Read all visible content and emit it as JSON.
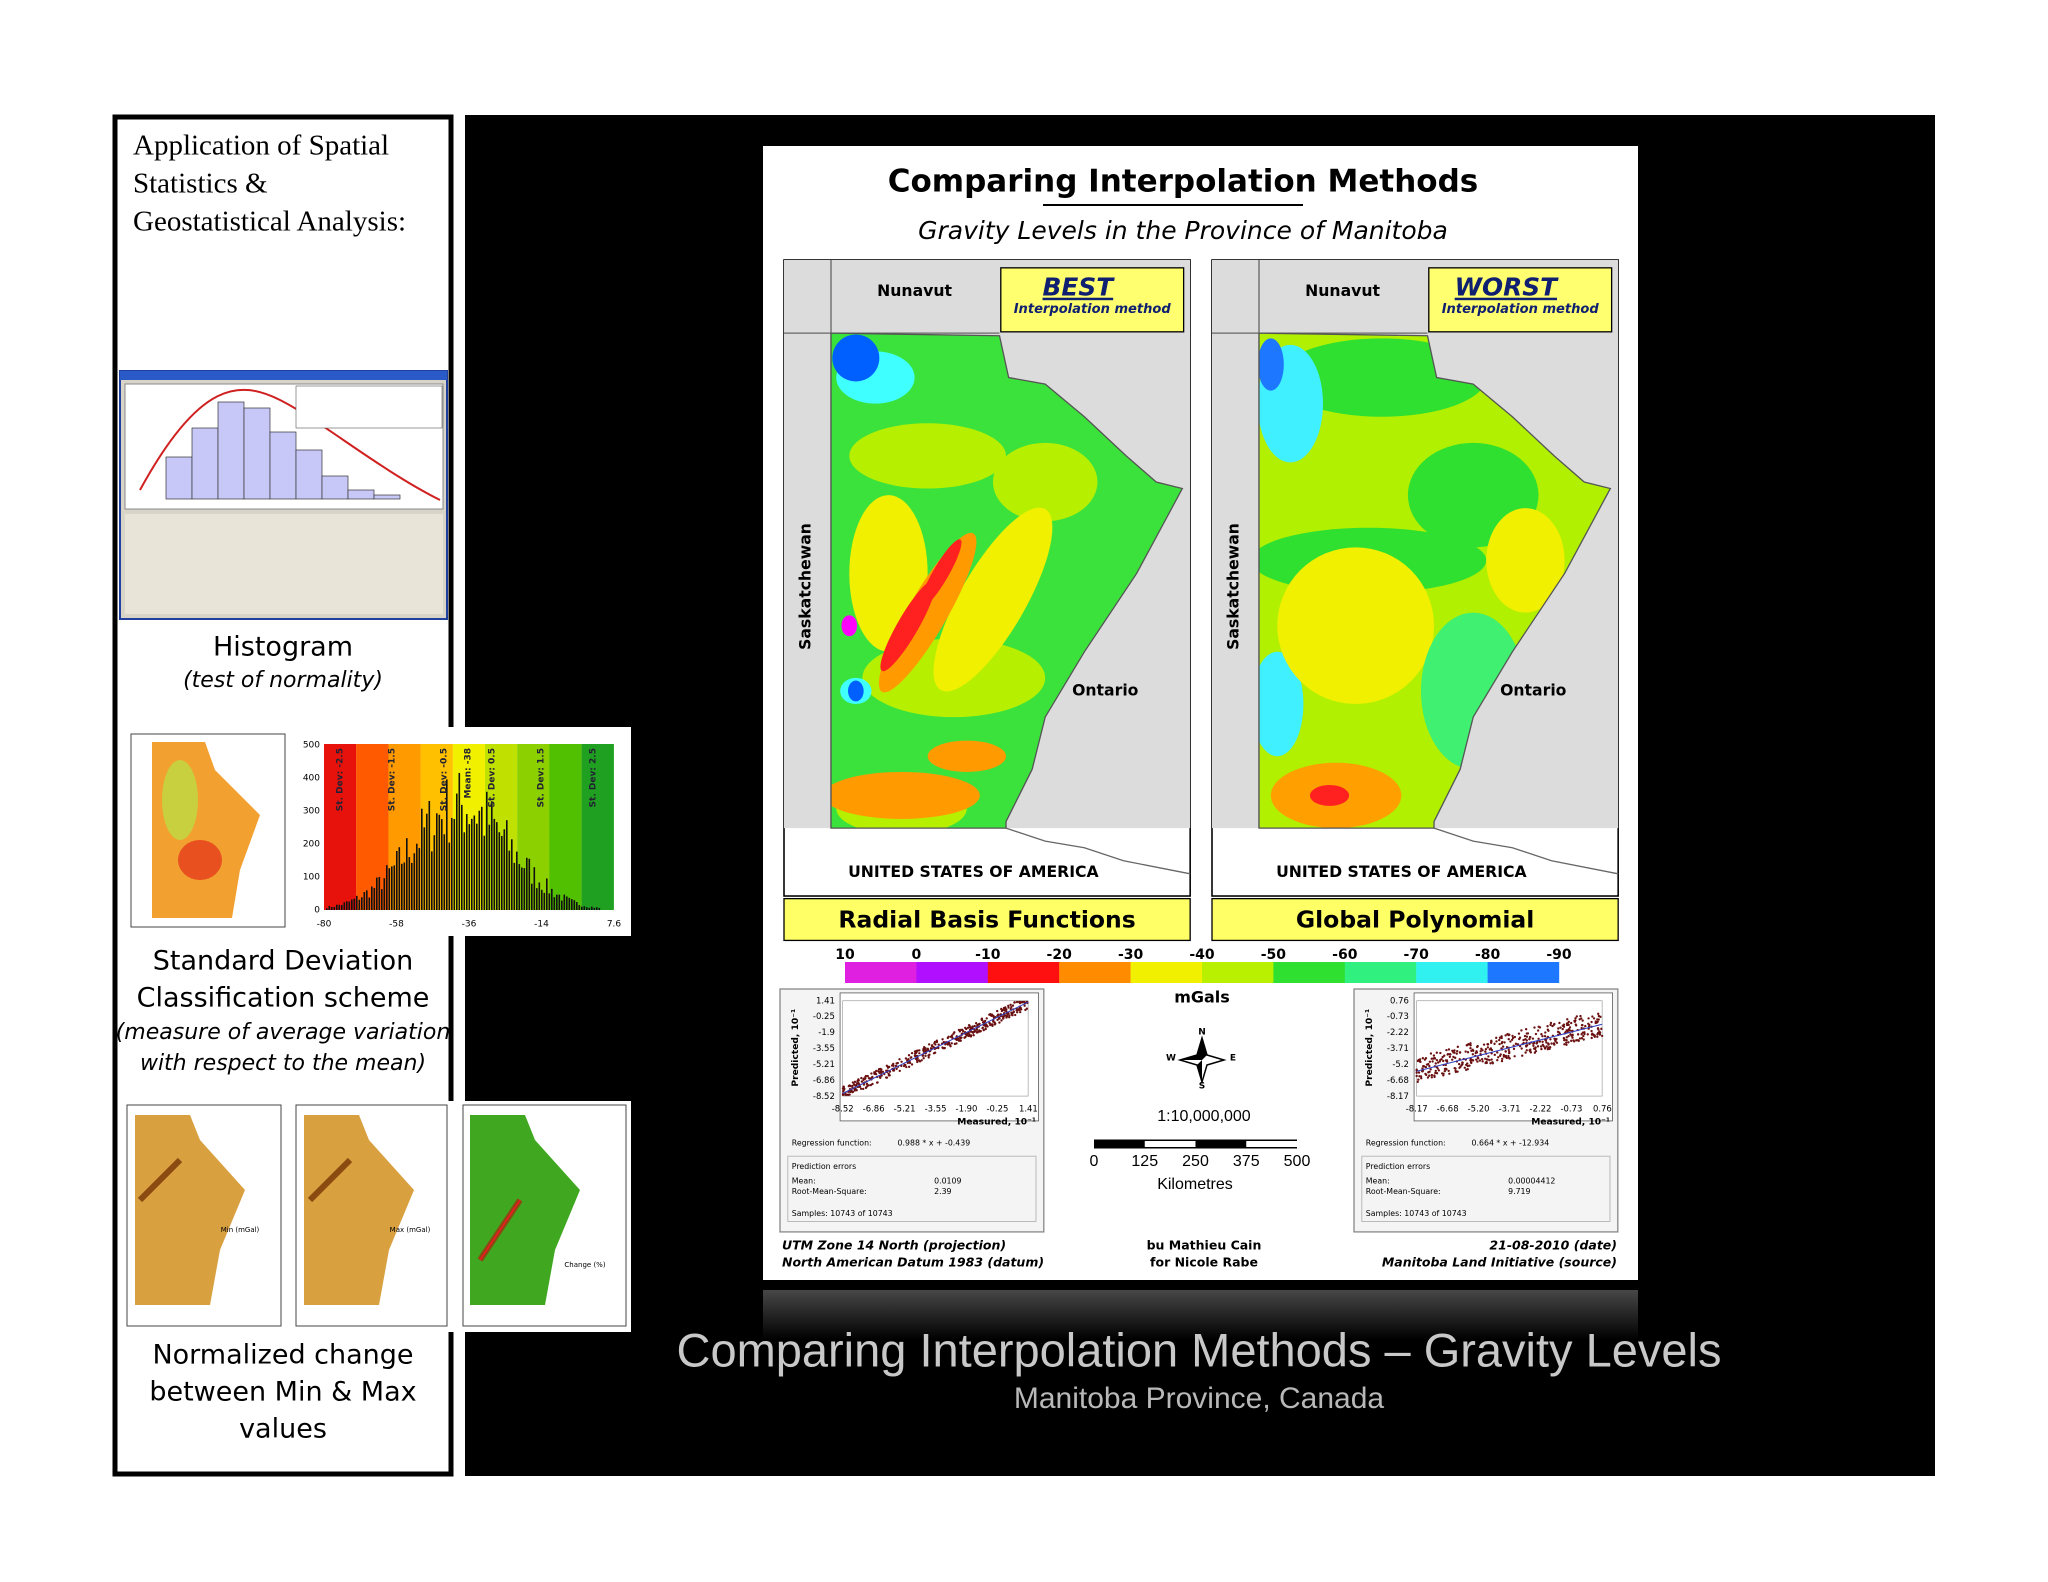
{
  "left_panel": {
    "heading": [
      "Application of  Spatial",
      "Statistics &",
      "Geostatistical Analysis:"
    ],
    "histogram": {
      "caption": "Histogram",
      "note": "(test of normality)"
    },
    "std_dev": {
      "caption": [
        "Standard Deviation",
        "Classification scheme"
      ],
      "note": [
        "(measure of average variation",
        "with respect to the mean)"
      ],
      "yticks": [
        0,
        100,
        200,
        300,
        400,
        500
      ],
      "xticks": [
        "-80",
        "-58",
        "-36",
        "-14",
        "7.6"
      ],
      "class_labels": [
        "St. Dev: -2.5",
        "St. Dev: -1.5",
        "St. Dev: -0.5",
        "Mean: -38",
        "St. Dev: 0.5",
        "St. Dev: 1.5",
        "St. Dev: 2.5"
      ]
    },
    "change": {
      "caption": [
        "Normalized change",
        "between Min & Max",
        "values"
      ],
      "legend_titles": [
        "Min (mGal)",
        "Max (mGal)",
        "Change (%)"
      ]
    }
  },
  "poster": {
    "title": "Comparing Interpolation Methods",
    "subtitle": "Gravity Levels in the Province of Manitoba",
    "regions": {
      "north": "Nunavut",
      "west": "Saskatchewan",
      "east": "Ontario",
      "south": "UNITED STATES OF AMERICA"
    },
    "maps": [
      {
        "rank": "BEST",
        "rank_note": "Interpolation method",
        "method": "Radial Basis Functions",
        "regression": {
          "yticks": [
            "1.41",
            "-0.25",
            "-1.9",
            "-3.55",
            "-5.21",
            "-6.86",
            "-8.52"
          ],
          "xticks": [
            "-8.52",
            "-6.86",
            "-5.21",
            "-3.55",
            "-1.90",
            "-0.25",
            "1.41"
          ],
          "y_label": "Predicted, 10⁻¹",
          "x_label": "Measured, 10⁻¹",
          "function_label": "Regression function:",
          "function": "0.988 * x + -0.439",
          "errors_label": "Prediction errors",
          "mean_label": "Mean:",
          "mean": "0.0109",
          "rms_label": "Root-Mean-Square:",
          "rms": "2.39",
          "samples": "Samples: 10743 of 10743"
        }
      },
      {
        "rank": "WORST",
        "rank_note": "Interpolation method",
        "method": "Global Polynomial",
        "regression": {
          "yticks": [
            "0.76",
            "-0.73",
            "-2.22",
            "-3.71",
            "-5.2",
            "-6.68",
            "-8.17"
          ],
          "xticks": [
            "-8.17",
            "-6.68",
            "-5.20",
            "-3.71",
            "-2.22",
            "-0.73",
            "0.76"
          ],
          "y_label": "Predicted, 10⁻¹",
          "x_label": "Measured, 10⁻¹",
          "function_label": "Regression function:",
          "function": "0.664 * x + -12.934",
          "errors_label": "Prediction errors",
          "mean_label": "Mean:",
          "mean": "0.00004412",
          "rms_label": "Root-Mean-Square:",
          "rms": "9.719",
          "samples": "Samples: 10743 of 10743"
        }
      }
    ],
    "colorbar": {
      "ticks": [
        10,
        0,
        -10,
        -20,
        -30,
        -40,
        -50,
        -60,
        -70,
        -80,
        -90
      ],
      "unit": "mGals"
    },
    "compass": [
      "N",
      "E",
      "S",
      "W"
    ],
    "scale": {
      "ratio": "1:10,000,000",
      "ticks": [
        0,
        125,
        250,
        375,
        500
      ],
      "unit": "Kilometres"
    },
    "footer": {
      "left": [
        "UTM Zone 14 North (projection)",
        "North American Datum 1983 (datum)"
      ],
      "center": [
        "bu Mathieu Cain",
        "for Nicole Rabe"
      ],
      "right": [
        "21-08-2010 (date)",
        "Manitoba Land Initiative (source)"
      ]
    }
  },
  "caption": {
    "title": "Comparing Interpolation Methods – Gravity Levels",
    "subtitle": "Manitoba Province, Canada"
  }
}
